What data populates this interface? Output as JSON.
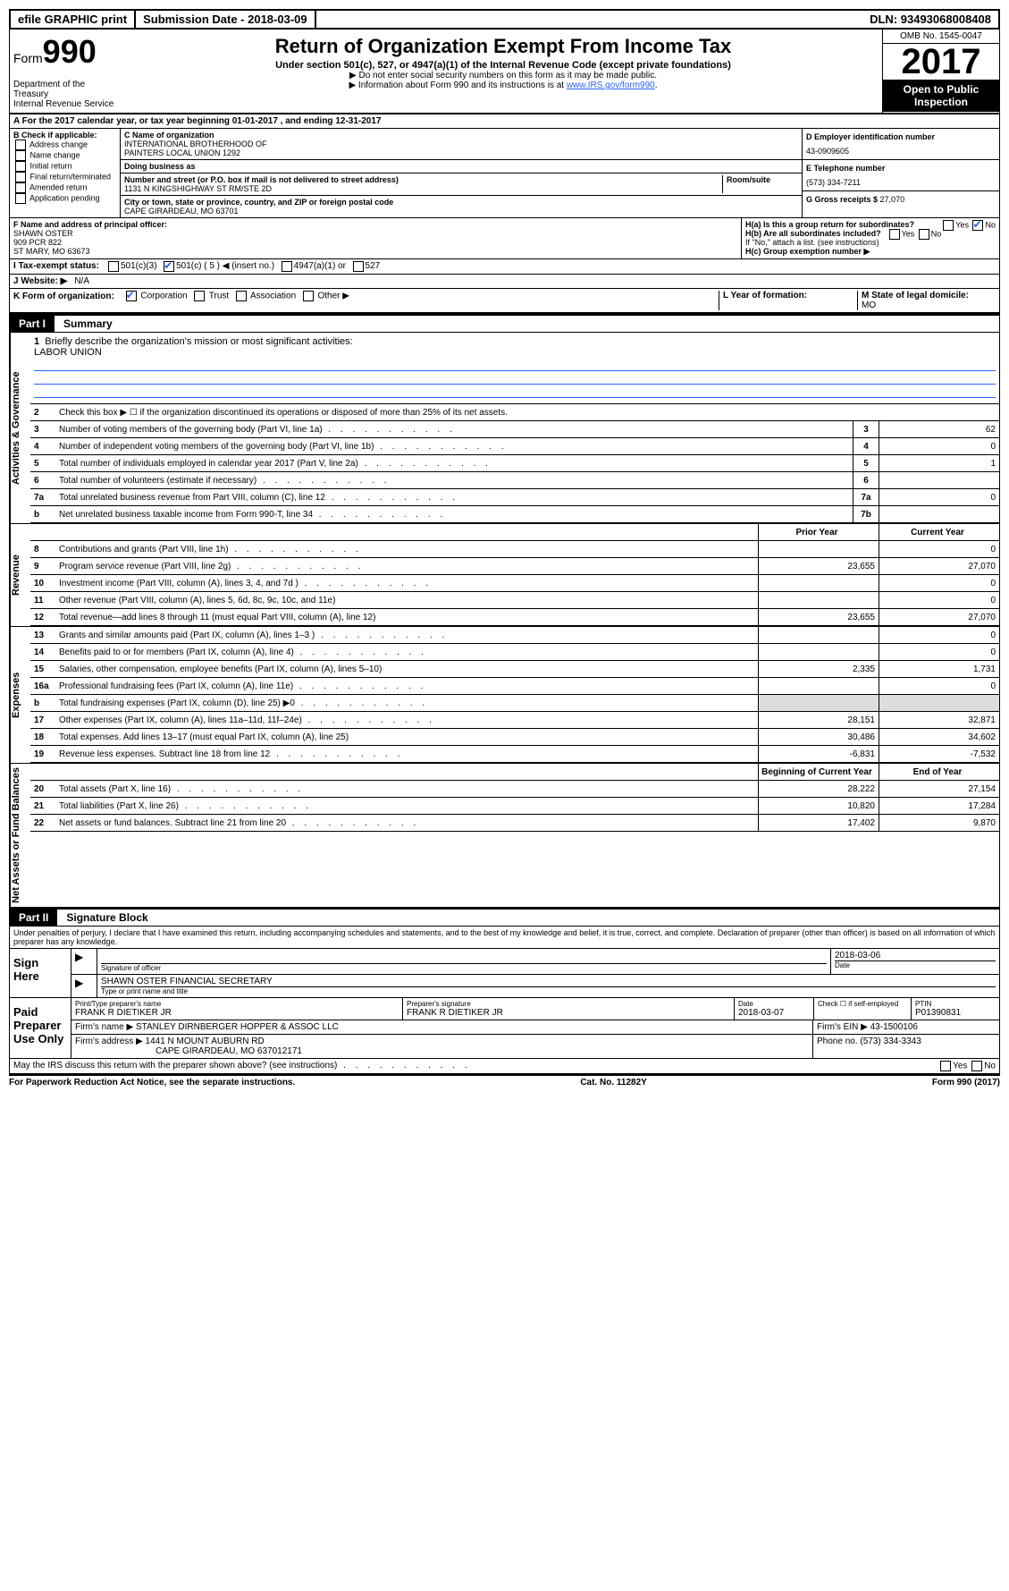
{
  "topbar": {
    "efile": "efile GRAPHIC print",
    "submission_label": "Submission Date - ",
    "submission_date": "2018-03-09",
    "dln_label": "DLN: ",
    "dln": "93493068008408"
  },
  "header": {
    "form_label": "Form",
    "form_no": "990",
    "dept": "Department of the Treasury\nInternal Revenue Service",
    "title": "Return of Organization Exempt From Income Tax",
    "subtitle": "Under section 501(c), 527, or 4947(a)(1) of the Internal Revenue Code (except private foundations)",
    "note1": "▶ Do not enter social security numbers on this form as it may be made public.",
    "note2_pre": "▶ Information about Form 990 and its instructions is at ",
    "note2_link": "www.IRS.gov/form990",
    "omb": "OMB No. 1545-0047",
    "year": "2017",
    "open": "Open to Public Inspection"
  },
  "rowA": "A For the 2017 calendar year, or tax year beginning 01-01-2017    , and ending 12-31-2017",
  "colB": {
    "hdr": "B Check if applicable:",
    "items": [
      "Address change",
      "Name change",
      "Initial return",
      "Final return/terminated",
      "Amended return",
      "Application pending"
    ]
  },
  "colC": {
    "name_label": "C Name of organization",
    "name1": "INTERNATIONAL BROTHERHOOD OF",
    "name2": "PAINTERS LOCAL UNION 1292",
    "dba_label": "Doing business as",
    "addr_label": "Number and street (or P.O. box if mail is not delivered to street address)",
    "room_label": "Room/suite",
    "addr": "1131 N KINGSHIGHWAY ST RM/STE 2D",
    "city_label": "City or town, state or province, country, and ZIP or foreign postal code",
    "city": "CAPE GIRARDEAU, MO  63701"
  },
  "colD": {
    "ein_label": "D Employer identification number",
    "ein": "43-0909605",
    "phone_label": "E Telephone number",
    "phone": "(573) 334-7211",
    "gross_label": "G Gross receipts $ ",
    "gross": "27,070"
  },
  "rowF": {
    "label": "F Name and address of principal officer:",
    "name": "SHAWN OSTER",
    "addr1": "909 PCR 822",
    "addr2": "ST MARY, MO  63673"
  },
  "rowH": {
    "ha": "H(a)  Is this a group return for subordinates?",
    "hb": "H(b)  Are all subordinates included?",
    "hb_note": "If \"No,\" attach a list. (see instructions)",
    "hc": "H(c)  Group exemption number ▶"
  },
  "rowI_label": "I   Tax-exempt status:",
  "rowI_opts": {
    "a": "501(c)(3)",
    "b": "501(c) ( 5 ) ◀ (insert no.)",
    "c": "4947(a)(1) or",
    "d": "527"
  },
  "rowJ": {
    "label": "J   Website: ▶",
    "val": "N/A"
  },
  "rowK": {
    "label": "K Form of organization:",
    "opts": [
      "Corporation",
      "Trust",
      "Association",
      "Other ▶"
    ]
  },
  "rowL": {
    "label": "L Year of formation:"
  },
  "rowM": {
    "label": "M State of legal domicile:",
    "val": "MO"
  },
  "part1": {
    "tab": "Part I",
    "title": "Summary"
  },
  "vtabs": {
    "gov": "Activities & Governance",
    "rev": "Revenue",
    "exp": "Expenses",
    "net": "Net Assets or Fund Balances"
  },
  "gov": {
    "l1": "Briefly describe the organization's mission or most significant activities:",
    "l1v": "LABOR UNION",
    "l2": "Check this box ▶ ☐  if the organization discontinued its operations or disposed of more than 25% of its net assets.",
    "l3": "Number of voting members of the governing body (Part VI, line 1a)",
    "l3v": "62",
    "l4": "Number of independent voting members of the governing body (Part VI, line 1b)",
    "l4v": "0",
    "l5": "Total number of individuals employed in calendar year 2017 (Part V, line 2a)",
    "l5v": "1",
    "l6": "Total number of volunteers (estimate if necessary)",
    "l6v": "",
    "l7a": "Total unrelated business revenue from Part VIII, column (C), line 12",
    "l7av": "0",
    "l7b": "Net unrelated business taxable income from Form 990-T, line 34",
    "l7bv": ""
  },
  "colhdrs": {
    "prior": "Prior Year",
    "current": "Current Year"
  },
  "rev": [
    {
      "n": "8",
      "d": "Contributions and grants (Part VIII, line 1h)",
      "p": "",
      "c": "0"
    },
    {
      "n": "9",
      "d": "Program service revenue (Part VIII, line 2g)",
      "p": "23,655",
      "c": "27,070"
    },
    {
      "n": "10",
      "d": "Investment income (Part VIII, column (A), lines 3, 4, and 7d )",
      "p": "",
      "c": "0"
    },
    {
      "n": "11",
      "d": "Other revenue (Part VIII, column (A), lines 5, 6d, 8c, 9c, 10c, and 11e)",
      "p": "",
      "c": "0"
    },
    {
      "n": "12",
      "d": "Total revenue—add lines 8 through 11 (must equal Part VIII, column (A), line 12)",
      "p": "23,655",
      "c": "27,070"
    }
  ],
  "exp": [
    {
      "n": "13",
      "d": "Grants and similar amounts paid (Part IX, column (A), lines 1–3 )",
      "p": "",
      "c": "0"
    },
    {
      "n": "14",
      "d": "Benefits paid to or for members (Part IX, column (A), line 4)",
      "p": "",
      "c": "0"
    },
    {
      "n": "15",
      "d": "Salaries, other compensation, employee benefits (Part IX, column (A), lines 5–10)",
      "p": "2,335",
      "c": "1,731"
    },
    {
      "n": "16a",
      "d": "Professional fundraising fees (Part IX, column (A), line 11e)",
      "p": "",
      "c": "0"
    },
    {
      "n": "b",
      "d": "Total fundraising expenses (Part IX, column (D), line 25) ▶0",
      "p": "grey",
      "c": "grey"
    },
    {
      "n": "17",
      "d": "Other expenses (Part IX, column (A), lines 11a–11d, 11f–24e)",
      "p": "28,151",
      "c": "32,871"
    },
    {
      "n": "18",
      "d": "Total expenses. Add lines 13–17 (must equal Part IX, column (A), line 25)",
      "p": "30,486",
      "c": "34,602"
    },
    {
      "n": "19",
      "d": "Revenue less expenses. Subtract line 18 from line 12",
      "p": "-6,831",
      "c": "-7,532"
    }
  ],
  "nethdrs": {
    "beg": "Beginning of Current Year",
    "end": "End of Year"
  },
  "net": [
    {
      "n": "20",
      "d": "Total assets (Part X, line 16)",
      "p": "28,222",
      "c": "27,154"
    },
    {
      "n": "21",
      "d": "Total liabilities (Part X, line 26)",
      "p": "10,820",
      "c": "17,284"
    },
    {
      "n": "22",
      "d": "Net assets or fund balances. Subtract line 21 from line 20",
      "p": "17,402",
      "c": "9,870"
    }
  ],
  "part2": {
    "tab": "Part II",
    "title": "Signature Block"
  },
  "penalties": "Under penalties of perjury, I declare that I have examined this return, including accompanying schedules and statements, and to the best of my knowledge and belief, it is true, correct, and complete. Declaration of preparer (other than officer) is based on all information of which preparer has any knowledge.",
  "sign": {
    "here": "Sign Here",
    "sig_label": "Signature of officer",
    "date_label": "Date",
    "date": "2018-03-06",
    "name": "SHAWN OSTER  FINANCIAL SECRETARY",
    "name_label": "Type or print name and title"
  },
  "paid": {
    "here": "Paid Preparer Use Only",
    "prep_name_label": "Print/Type preparer's name",
    "prep_name": "FRANK R DIETIKER JR",
    "prep_sig_label": "Preparer's signature",
    "prep_sig": "FRANK R DIETIKER JR",
    "prep_date_label": "Date",
    "prep_date": "2018-03-07",
    "check_label": "Check ☐ if self-employed",
    "ptin_label": "PTIN",
    "ptin": "P01390831",
    "firm_name_label": "Firm's name    ▶",
    "firm_name": "STANLEY DIRNBERGER HOPPER & ASSOC LLC",
    "firm_ein_label": "Firm's EIN ▶",
    "firm_ein": "43-1500106",
    "firm_addr_label": "Firm's address ▶",
    "firm_addr1": "1441 N MOUNT AUBURN RD",
    "firm_addr2": "CAPE GIRARDEAU, MO  637012171",
    "firm_phone_label": "Phone no.",
    "firm_phone": "(573) 334-3343"
  },
  "discuss": "May the IRS discuss this return with the preparer shown above? (see instructions)",
  "footer": {
    "left": "For Paperwork Reduction Act Notice, see the separate instructions.",
    "mid": "Cat. No. 11282Y",
    "right": "Form 990 (2017)"
  }
}
